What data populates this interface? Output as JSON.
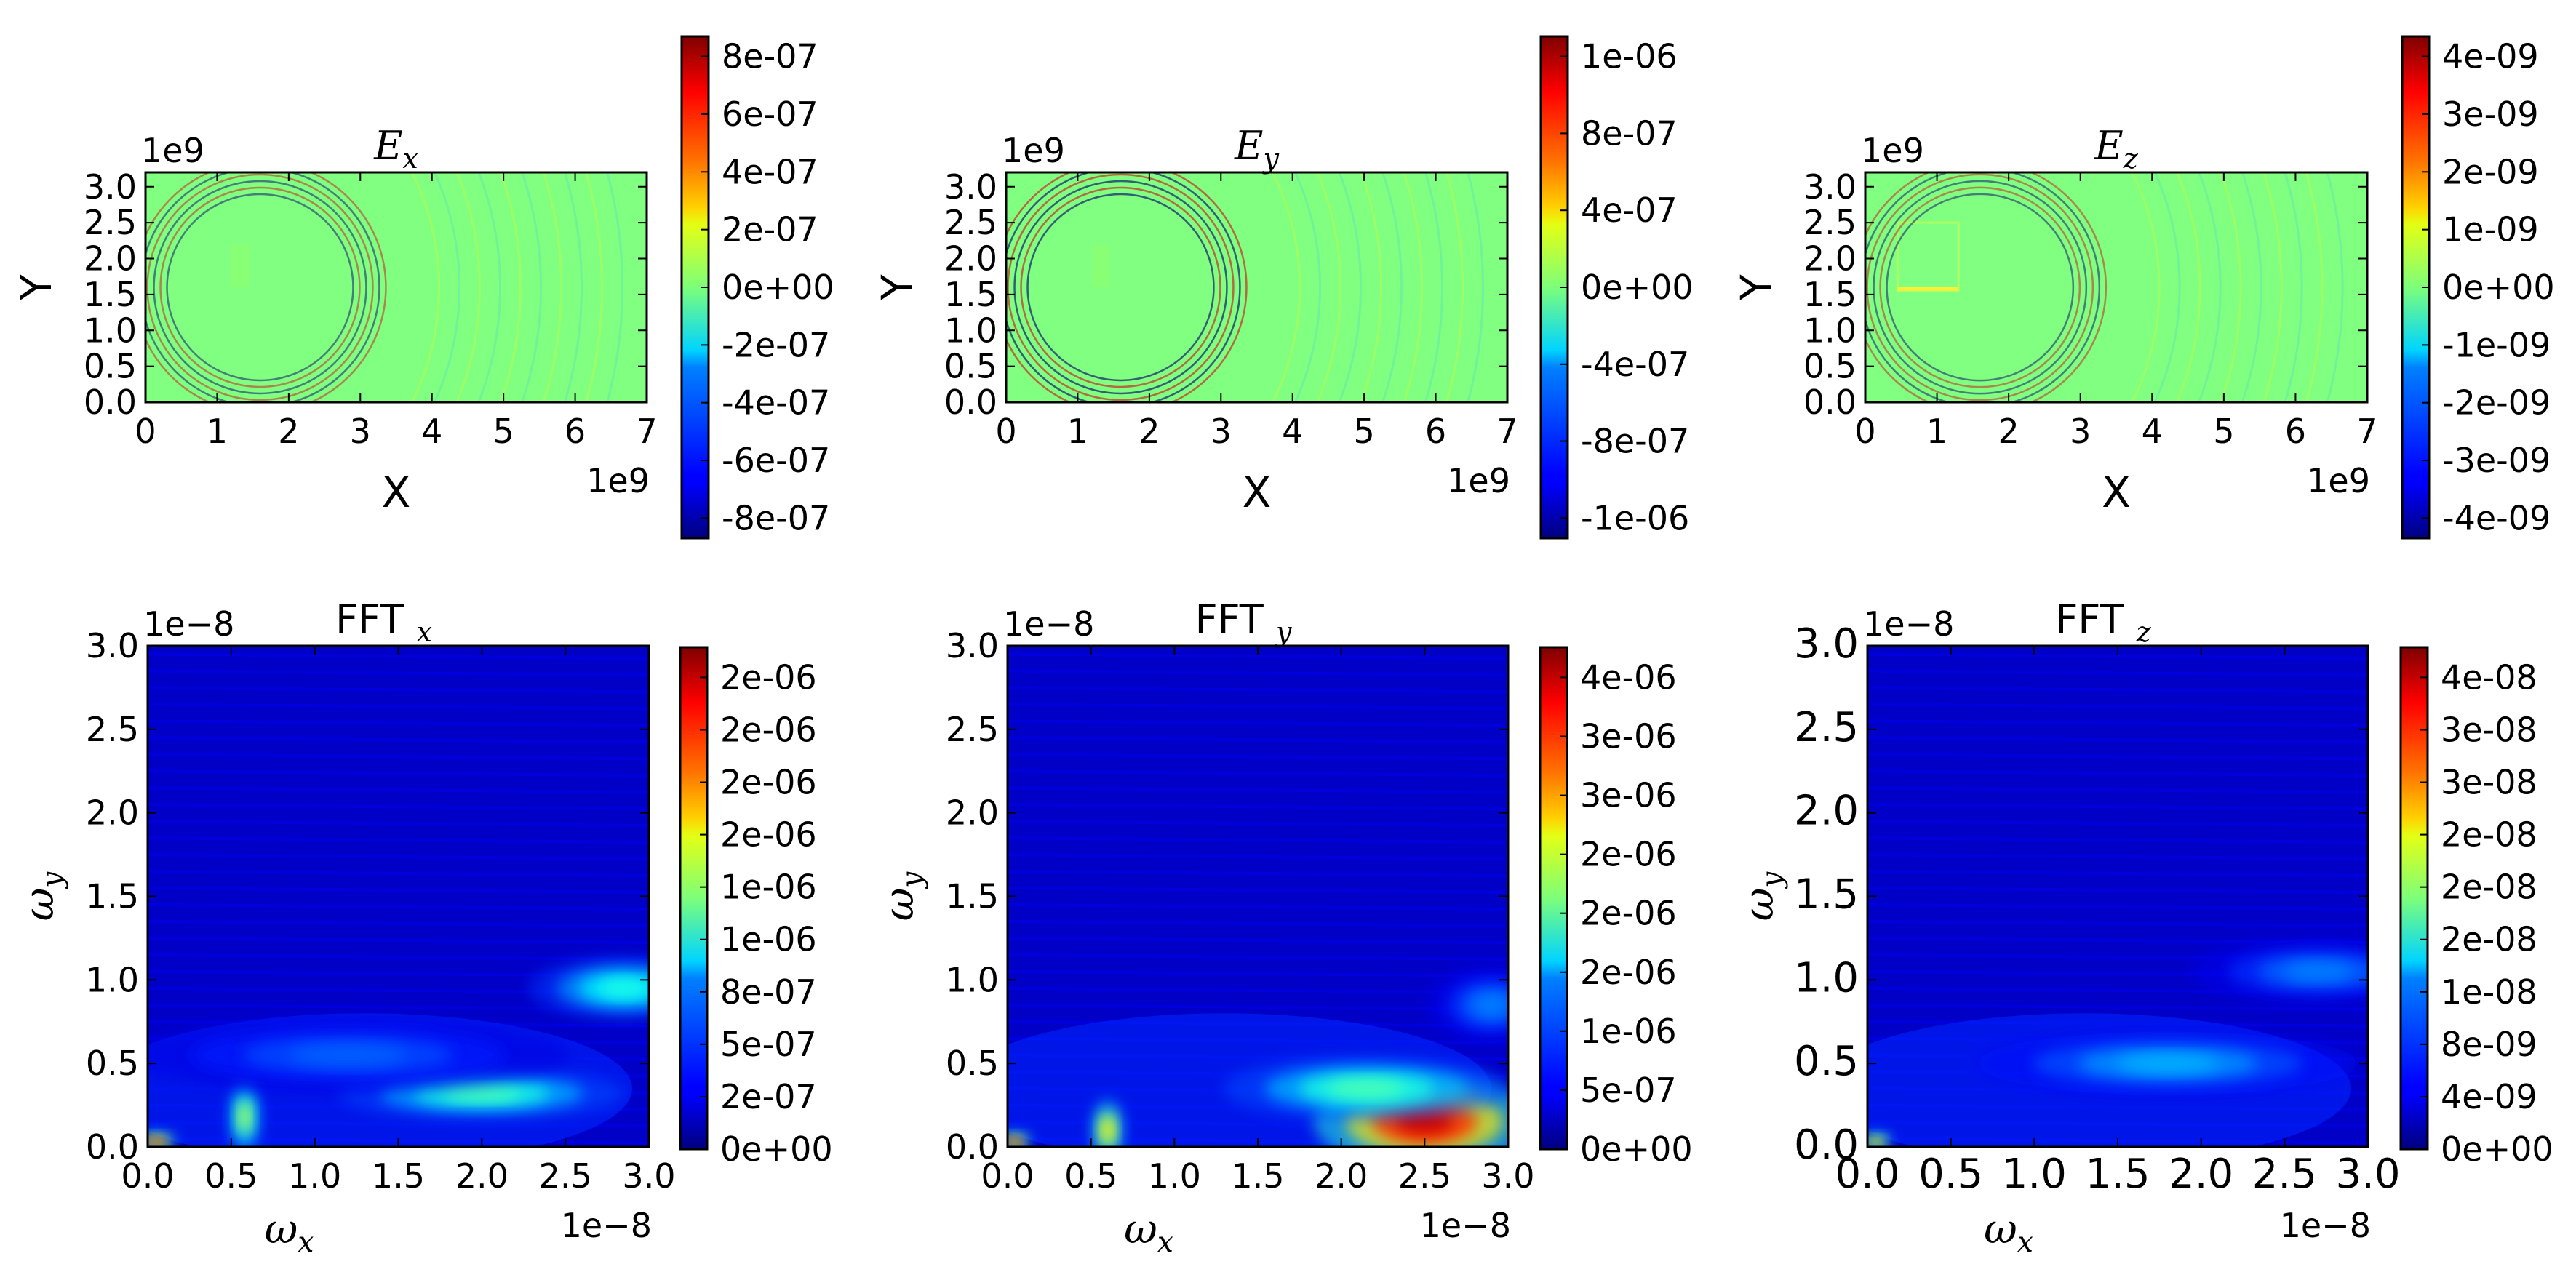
{
  "chart_data": [
    {
      "type": "heatmap",
      "title": "E",
      "title_sub": "x",
      "xlabel": "X",
      "ylabel": "Y",
      "x_ticks": [
        "0",
        "1",
        "2",
        "3",
        "4",
        "5",
        "6",
        "7"
      ],
      "y_ticks": [
        "0.0",
        "0.5",
        "1.0",
        "1.5",
        "2.0",
        "2.5",
        "3.0"
      ],
      "x_offset": "1e9",
      "y_offset": "1e9",
      "xlim": [
        0,
        7
      ],
      "ylim": [
        0,
        3.2
      ],
      "colorbar_ticks": [
        "8e-07",
        "6e-07",
        "4e-07",
        "2e-07",
        "0e+00",
        "-2e-07",
        "-4e-07",
        "-6e-07",
        "-8e-07"
      ],
      "colorbar_range": [
        -9e-07,
        9e-07
      ],
      "field_description": "near-uniform 0 field with faint arcs near left edge and around x=4-5"
    },
    {
      "type": "heatmap",
      "title": "E",
      "title_sub": "y",
      "xlabel": "X",
      "ylabel": "Y",
      "x_ticks": [
        "0",
        "1",
        "2",
        "3",
        "4",
        "5",
        "6",
        "7"
      ],
      "y_ticks": [
        "0.0",
        "0.5",
        "1.0",
        "1.5",
        "2.0",
        "2.5",
        "3.0"
      ],
      "x_offset": "1e9",
      "y_offset": "1e9",
      "xlim": [
        0,
        7
      ],
      "ylim": [
        0,
        3.2
      ],
      "colorbar_ticks": [
        "1e-06",
        "8e-07",
        "4e-07",
        "0e+00",
        "-4e-07",
        "-8e-07",
        "-1e-06"
      ],
      "colorbar_range": [
        -1.15e-06,
        1.15e-06
      ]
    },
    {
      "type": "heatmap",
      "title": "E",
      "title_sub": "z",
      "xlabel": "X",
      "ylabel": "Y",
      "x_ticks": [
        "0",
        "1",
        "2",
        "3",
        "4",
        "5",
        "6",
        "7"
      ],
      "y_ticks": [
        "0.0",
        "0.5",
        "1.0",
        "1.5",
        "2.0",
        "2.5",
        "3.0"
      ],
      "x_offset": "1e9",
      "y_offset": "1e9",
      "xlim": [
        0,
        7
      ],
      "ylim": [
        0,
        3.2
      ],
      "colorbar_ticks": [
        "4e-09",
        "3e-09",
        "2e-09",
        "1e-09",
        "0e+00",
        "-1e-09",
        "-2e-09",
        "-3e-09",
        "-4e-09"
      ],
      "colorbar_range": [
        -4e-09,
        4e-09
      ]
    },
    {
      "type": "heatmap",
      "title": "FFT E",
      "title_sub": "x",
      "xlabel": "ω",
      "xlabel_sub": "x",
      "ylabel": "ω",
      "ylabel_sub": "y",
      "x_ticks": [
        "0.0",
        "0.5",
        "1.0",
        "1.5",
        "2.0",
        "2.5",
        "3.0"
      ],
      "y_ticks": [
        "0.0",
        "0.5",
        "1.0",
        "1.5",
        "2.0",
        "2.5",
        "3.0"
      ],
      "x_offset": "1e−8",
      "y_offset": "1e−8",
      "xlim": [
        0,
        3.0
      ],
      "ylim": [
        0,
        3.0
      ],
      "colorbar_ticks": [
        "2e-06",
        "2e-06",
        "2e-06",
        "2e-06",
        "1e-06",
        "1e-06",
        "8e-07",
        "5e-07",
        "2e-07",
        "0e+00"
      ],
      "colorbar_range": [
        0,
        2.25e-06
      ],
      "blobs": [
        {
          "x": 0.58,
          "y": 0.18,
          "sx": 0.05,
          "sy": 0.12,
          "v": 0.55
        },
        {
          "x": 0.05,
          "y": 0.03,
          "sx": 0.06,
          "sy": 0.03,
          "v": 0.85
        },
        {
          "x": 2.0,
          "y": 0.32,
          "sx": 0.45,
          "sy": 0.08,
          "v": 0.45
        },
        {
          "x": 2.85,
          "y": 0.95,
          "sx": 0.3,
          "sy": 0.1,
          "v": 0.4
        },
        {
          "x": 1.2,
          "y": 0.55,
          "sx": 0.7,
          "sy": 0.12,
          "v": 0.22
        }
      ]
    },
    {
      "type": "heatmap",
      "title": "FFT E",
      "title_sub": "y",
      "xlabel": "ω",
      "xlabel_sub": "x",
      "ylabel": "ω",
      "ylabel_sub": "y",
      "x_ticks": [
        "0.0",
        "0.5",
        "1.0",
        "1.5",
        "2.0",
        "2.5",
        "3.0"
      ],
      "y_ticks": [
        "0.0",
        "0.5",
        "1.0",
        "1.5",
        "2.0",
        "2.5",
        "3.0"
      ],
      "x_offset": "1e−8",
      "y_offset": "1e−8",
      "xlim": [
        0,
        3.0
      ],
      "ylim": [
        0,
        3.0
      ],
      "colorbar_ticks": [
        "4e-06",
        "3e-06",
        "3e-06",
        "2e-06",
        "2e-06",
        "2e-06",
        "1e-06",
        "5e-07",
        "0e+00"
      ],
      "colorbar_range": [
        0,
        4.8e-06
      ],
      "blobs": [
        {
          "x": 2.5,
          "y": 0.15,
          "sx": 0.35,
          "sy": 0.15,
          "v": 0.92
        },
        {
          "x": 2.15,
          "y": 0.35,
          "sx": 0.45,
          "sy": 0.1,
          "v": 0.45
        },
        {
          "x": 0.6,
          "y": 0.1,
          "sx": 0.05,
          "sy": 0.1,
          "v": 0.65
        },
        {
          "x": 0.04,
          "y": 0.03,
          "sx": 0.05,
          "sy": 0.03,
          "v": 0.85
        },
        {
          "x": 2.9,
          "y": 0.85,
          "sx": 0.2,
          "sy": 0.12,
          "v": 0.25
        }
      ]
    },
    {
      "type": "heatmap",
      "title": "FFT E",
      "title_sub": "z",
      "xlabel": "ω",
      "xlabel_sub": "x",
      "ylabel": "ω",
      "ylabel_sub": "y",
      "x_ticks": [
        "0.0",
        "0.5",
        "1.0",
        "1.5",
        "2.0",
        "2.5",
        "3.0"
      ],
      "y_ticks": [
        "0.0",
        "0.5",
        "1.0",
        "1.5",
        "2.0",
        "2.5",
        "3.0"
      ],
      "x_offset": "1e−8",
      "y_offset": "1e−8",
      "xlim": [
        0,
        3.0
      ],
      "ylim": [
        0,
        3.0
      ],
      "colorbar_ticks": [
        "4e-08",
        "3e-08",
        "3e-08",
        "2e-08",
        "2e-08",
        "2e-08",
        "1e-08",
        "8e-09",
        "4e-09",
        "0e+00"
      ],
      "colorbar_range": [
        0,
        4.2e-08
      ],
      "blobs": [
        {
          "x": 1.8,
          "y": 0.5,
          "sx": 0.6,
          "sy": 0.1,
          "v": 0.3
        },
        {
          "x": 2.7,
          "y": 1.05,
          "sx": 0.4,
          "sy": 0.1,
          "v": 0.25
        },
        {
          "x": 0.05,
          "y": 0.03,
          "sx": 0.05,
          "sy": 0.03,
          "v": 0.7
        }
      ]
    }
  ]
}
